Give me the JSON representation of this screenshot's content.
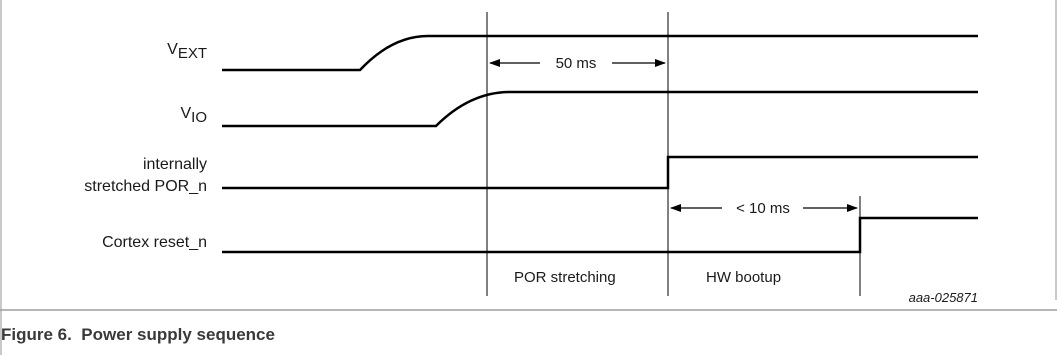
{
  "signals": [
    {
      "id": "vext",
      "label_main": "V",
      "label_sub": "EXT"
    },
    {
      "id": "vio",
      "label_main": "V",
      "label_sub": "IO"
    },
    {
      "id": "por",
      "label_line1": "internally",
      "label_line2": "stretched POR_n"
    },
    {
      "id": "cortex",
      "label": "Cortex reset_n"
    }
  ],
  "annotations": {
    "por_delay": "50 ms",
    "boot_delay": "< 10 ms"
  },
  "phases": {
    "stretching": "POR stretching",
    "bootup": "HW bootup"
  },
  "figure": {
    "id": "aaa-025871",
    "caption": "Figure 6.  Power supply sequence"
  },
  "colors": {
    "frame": "#c9c9c9",
    "separator": "#9e9e9e",
    "ink": "#000000",
    "caption_text": "#3a3a3a"
  }
}
